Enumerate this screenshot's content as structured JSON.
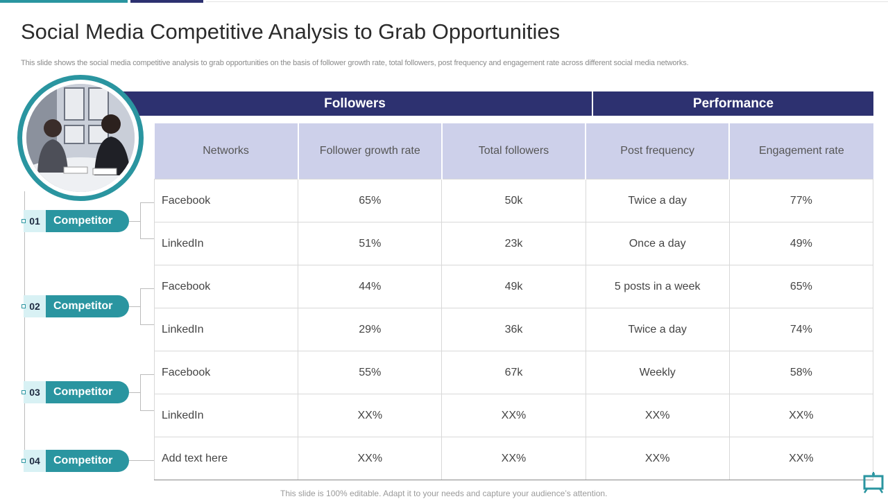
{
  "title": "Social Media Competitive Analysis to Grab Opportunities",
  "subtitle": "This slide shows the social media competitive analysis to grab opportunities on the basis of follower growth rate, total followers, post frequency and engagement rate across different social media networks.",
  "banners": {
    "followers": "Followers",
    "performance": "Performance"
  },
  "table": {
    "headers": [
      "Networks",
      "Follower growth rate",
      "Total followers",
      "Post frequency",
      "Engagement rate"
    ],
    "rows": [
      [
        "Facebook",
        "65%",
        "50k",
        "Twice a day",
        "77%"
      ],
      [
        "LinkedIn",
        "51%",
        "23k",
        "Once a day",
        "49%"
      ],
      [
        "Facebook",
        "44%",
        "49k",
        "5 posts in a week",
        "65%"
      ],
      [
        "LinkedIn",
        "29%",
        "36k",
        "Twice a day",
        "74%"
      ],
      [
        "Facebook",
        "55%",
        "67k",
        "Weekly",
        "58%"
      ],
      [
        "LinkedIn",
        "XX%",
        "XX%",
        "XX%",
        "XX%"
      ],
      [
        "Add text here",
        "XX%",
        "XX%",
        "XX%",
        "XX%"
      ]
    ]
  },
  "competitors": [
    {
      "num": "01",
      "label": "Competitor"
    },
    {
      "num": "02",
      "label": "Competitor"
    },
    {
      "num": "03",
      "label": "Competitor"
    },
    {
      "num": "04",
      "label": "Competitor"
    }
  ],
  "footer": "This slide is 100% editable. Adapt it to your needs and capture your audience’s attention.",
  "colors": {
    "teal": "#2a95a0",
    "navy": "#2d3170",
    "header_bg": "#cdd0ea",
    "num_bg": "#d8f1f4"
  },
  "icons": {
    "corner": "presentation-board-icon"
  }
}
